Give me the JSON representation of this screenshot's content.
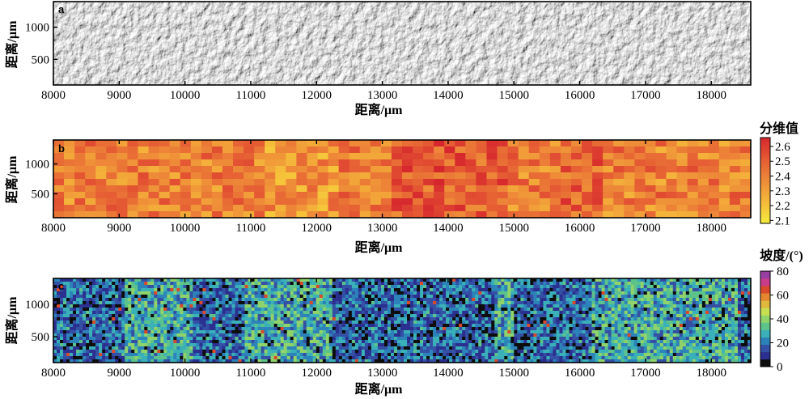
{
  "chart_data": [
    {
      "panel": "a",
      "type": "heatmap",
      "xlabel": "距离/μm",
      "ylabel": "距离/μm",
      "xlim": [
        8000,
        18600
      ],
      "ylim": [
        100,
        1400
      ],
      "xticks": [
        8000,
        9000,
        10000,
        11000,
        12000,
        13000,
        14000,
        15000,
        16000,
        17000,
        18000
      ],
      "yticks": [
        500,
        1000
      ],
      "colormap": "gray-hillshade",
      "colors": {
        "frame": "#000000",
        "ticks": "#000000"
      }
    },
    {
      "panel": "b",
      "type": "heatmap",
      "xlabel": "距离/μm",
      "ylabel": "距离/μm",
      "xlim": [
        8000,
        18600
      ],
      "ylim": [
        100,
        1400
      ],
      "xticks": [
        8000,
        9000,
        10000,
        11000,
        12000,
        13000,
        14000,
        15000,
        16000,
        17000,
        18000
      ],
      "yticks": [
        500,
        1000
      ],
      "colorbar": {
        "title": "分维值",
        "range": [
          2.08,
          2.66
        ],
        "ticks": [
          2.1,
          2.2,
          2.3,
          2.4,
          2.5,
          2.6
        ],
        "stops": [
          "#f4ec3c",
          "#f5b93a",
          "#ee8a38",
          "#e55a33",
          "#d6262d"
        ]
      }
    },
    {
      "panel": "c",
      "type": "heatmap",
      "xlabel": "距离/μm",
      "ylabel": "距离/μm",
      "xlim": [
        8000,
        18600
      ],
      "ylim": [
        100,
        1400
      ],
      "xticks": [
        8000,
        9000,
        10000,
        11000,
        12000,
        13000,
        14000,
        15000,
        16000,
        17000,
        18000
      ],
      "yticks": [
        500,
        1000
      ],
      "colorbar": {
        "title": "坡度/(°)",
        "range": [
          0,
          80
        ],
        "ticks": [
          0,
          20,
          40,
          60,
          80
        ],
        "bands": [
          "#0d0d0d",
          "#2b2f8f",
          "#3450a5",
          "#2b83ba",
          "#3ab0b8",
          "#5cc38a",
          "#8fd36a",
          "#c9df52",
          "#e0b93c",
          "#e4872f",
          "#d94a2b",
          "#c83c8a",
          "#9a3fa2"
        ]
      }
    }
  ]
}
